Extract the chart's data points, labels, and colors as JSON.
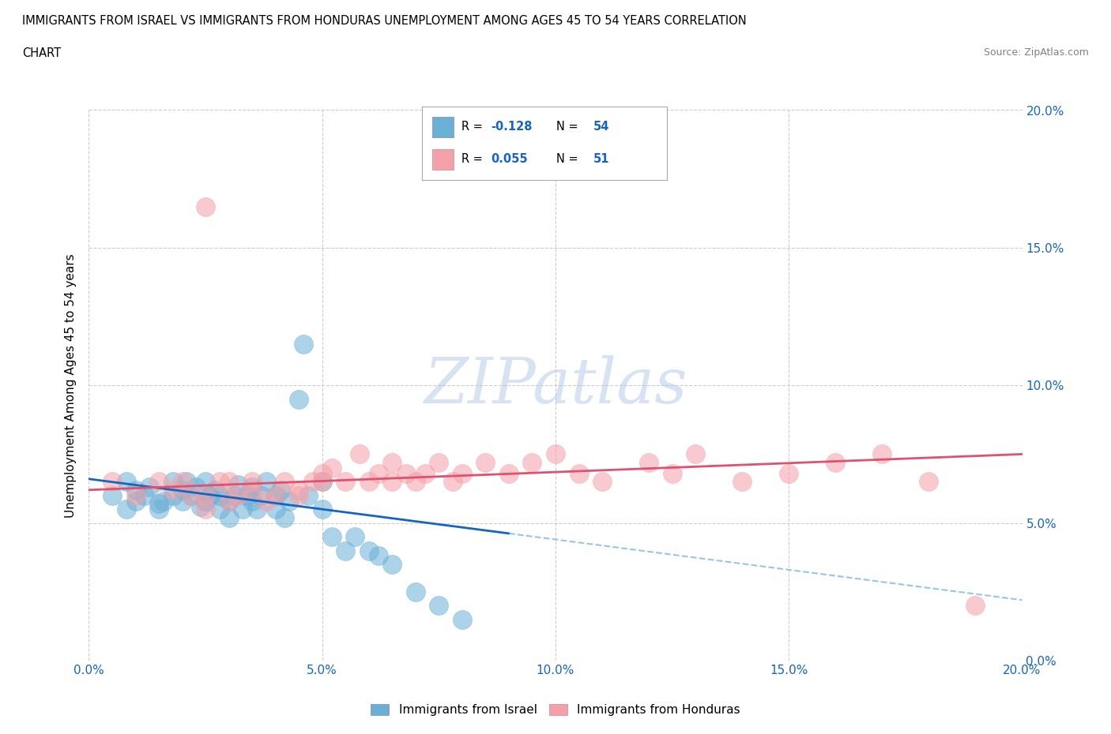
{
  "title_line1": "IMMIGRANTS FROM ISRAEL VS IMMIGRANTS FROM HONDURAS UNEMPLOYMENT AMONG AGES 45 TO 54 YEARS CORRELATION",
  "title_line2": "CHART",
  "source": "Source: ZipAtlas.com",
  "ylabel": "Unemployment Among Ages 45 to 54 years",
  "xlim": [
    0.0,
    0.2
  ],
  "ylim": [
    0.0,
    0.2
  ],
  "xticks": [
    0.0,
    0.05,
    0.1,
    0.15,
    0.2
  ],
  "yticks": [
    0.0,
    0.05,
    0.1,
    0.15,
    0.2
  ],
  "xticklabels": [
    "0.0%",
    "5.0%",
    "10.0%",
    "15.0%",
    "20.0%"
  ],
  "yticklabels": [
    "0.0%",
    "5.0%",
    "10.0%",
    "15.0%",
    "20.0%"
  ],
  "israel_color": "#6aafd6",
  "honduras_color": "#f4a0a8",
  "israel_R": "-0.128",
  "israel_N": "54",
  "honduras_R": "0.055",
  "honduras_N": "51",
  "watermark": "ZIPatlas",
  "legend_label_israel": "Immigrants from Israel",
  "legend_label_honduras": "Immigrants from Honduras",
  "blue_text_color": "#1565C0",
  "background_color": "#ffffff",
  "grid_color": "#cccccc",
  "israel_scatter_x": [
    0.005,
    0.008,
    0.008,
    0.01,
    0.01,
    0.012,
    0.013,
    0.015,
    0.015,
    0.016,
    0.018,
    0.018,
    0.02,
    0.02,
    0.021,
    0.022,
    0.023,
    0.024,
    0.025,
    0.025,
    0.026,
    0.027,
    0.028,
    0.028,
    0.03,
    0.03,
    0.031,
    0.032,
    0.033,
    0.034,
    0.035,
    0.035,
    0.036,
    0.037,
    0.038,
    0.04,
    0.04,
    0.041,
    0.042,
    0.043,
    0.045,
    0.046,
    0.047,
    0.05,
    0.05,
    0.052,
    0.055,
    0.057,
    0.06,
    0.062,
    0.065,
    0.07,
    0.075,
    0.08
  ],
  "israel_scatter_y": [
    0.06,
    0.065,
    0.055,
    0.062,
    0.058,
    0.06,
    0.063,
    0.057,
    0.055,
    0.058,
    0.065,
    0.06,
    0.062,
    0.058,
    0.065,
    0.06,
    0.063,
    0.056,
    0.058,
    0.065,
    0.06,
    0.062,
    0.055,
    0.06,
    0.052,
    0.058,
    0.06,
    0.064,
    0.055,
    0.06,
    0.058,
    0.063,
    0.055,
    0.06,
    0.065,
    0.055,
    0.06,
    0.062,
    0.052,
    0.058,
    0.095,
    0.115,
    0.06,
    0.055,
    0.065,
    0.045,
    0.04,
    0.045,
    0.04,
    0.038,
    0.035,
    0.025,
    0.02,
    0.015
  ],
  "honduras_scatter_x": [
    0.005,
    0.01,
    0.015,
    0.018,
    0.02,
    0.022,
    0.025,
    0.025,
    0.028,
    0.03,
    0.03,
    0.032,
    0.035,
    0.035,
    0.038,
    0.04,
    0.042,
    0.045,
    0.045,
    0.048,
    0.05,
    0.05,
    0.052,
    0.055,
    0.058,
    0.06,
    0.062,
    0.065,
    0.065,
    0.068,
    0.07,
    0.072,
    0.075,
    0.078,
    0.08,
    0.085,
    0.09,
    0.095,
    0.1,
    0.105,
    0.11,
    0.12,
    0.125,
    0.13,
    0.14,
    0.15,
    0.16,
    0.17,
    0.18,
    0.19,
    0.025
  ],
  "honduras_scatter_y": [
    0.065,
    0.06,
    0.065,
    0.062,
    0.065,
    0.06,
    0.055,
    0.06,
    0.065,
    0.058,
    0.065,
    0.06,
    0.062,
    0.065,
    0.058,
    0.06,
    0.065,
    0.06,
    0.062,
    0.065,
    0.068,
    0.065,
    0.07,
    0.065,
    0.075,
    0.065,
    0.068,
    0.065,
    0.072,
    0.068,
    0.065,
    0.068,
    0.072,
    0.065,
    0.068,
    0.072,
    0.068,
    0.072,
    0.075,
    0.068,
    0.065,
    0.072,
    0.068,
    0.075,
    0.065,
    0.068,
    0.072,
    0.075,
    0.065,
    0.02,
    0.165
  ],
  "israel_trend_x": [
    0.0,
    0.2
  ],
  "israel_trend_y": [
    0.066,
    0.022
  ],
  "honduras_trend_x": [
    0.0,
    0.2
  ],
  "honduras_trend_y": [
    0.062,
    0.075
  ]
}
